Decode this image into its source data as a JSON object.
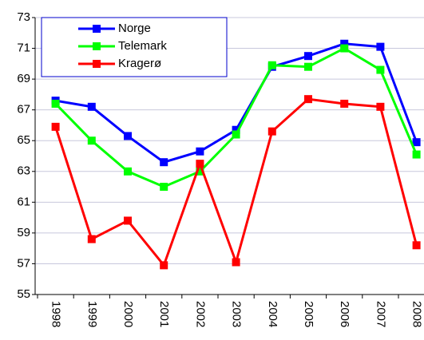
{
  "chart_data": {
    "type": "line",
    "categories": [
      "1998",
      "1999",
      "2000",
      "2001",
      "2002",
      "2003",
      "2004",
      "2005",
      "2006",
      "2007",
      "2008"
    ],
    "series": [
      {
        "name": "Norge",
        "color": "#0000ff",
        "values": [
          67.6,
          67.2,
          65.3,
          63.6,
          64.3,
          65.7,
          69.8,
          70.5,
          71.3,
          71.1,
          64.9
        ]
      },
      {
        "name": "Telemark",
        "color": "#00ff00",
        "values": [
          67.4,
          65.0,
          63.0,
          62.0,
          63.0,
          65.4,
          69.9,
          69.8,
          71.0,
          69.6,
          64.1
        ]
      },
      {
        "name": "Kragerø",
        "color": "#ff0000",
        "values": [
          65.9,
          58.6,
          59.8,
          56.9,
          63.5,
          57.1,
          65.6,
          67.7,
          67.4,
          67.2,
          58.2
        ]
      }
    ],
    "ylim": [
      55,
      73
    ],
    "yticks": [
      55,
      57,
      59,
      61,
      63,
      65,
      67,
      69,
      71,
      73
    ],
    "grid": true,
    "legend": "upper left"
  }
}
